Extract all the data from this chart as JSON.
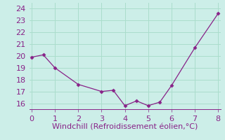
{
  "x": [
    0,
    0.5,
    1,
    2,
    3,
    3.5,
    4,
    4.5,
    5,
    5.5,
    6,
    7,
    8
  ],
  "y": [
    19.9,
    20.1,
    19.0,
    17.6,
    17.0,
    17.1,
    15.8,
    16.2,
    15.8,
    16.1,
    17.5,
    20.7,
    23.6
  ],
  "line_color": "#882288",
  "marker": "D",
  "marker_size": 2.5,
  "background_color": "#cceee8",
  "grid_color": "#aaddcc",
  "xlabel": "Windchill (Refroidissement éolien,°C)",
  "xlabel_color": "#882288",
  "tick_color": "#882288",
  "xlim": [
    -0.1,
    8.1
  ],
  "ylim": [
    15.5,
    24.5
  ],
  "yticks": [
    16,
    17,
    18,
    19,
    20,
    21,
    22,
    23,
    24
  ],
  "xticks": [
    0,
    1,
    2,
    3,
    4,
    5,
    6,
    7,
    8
  ],
  "xlabel_fontsize": 8,
  "tick_fontsize": 8
}
